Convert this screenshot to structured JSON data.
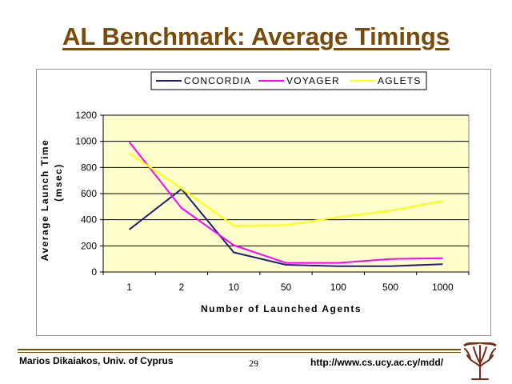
{
  "slide": {
    "title": "AL Benchmark: Average Timings"
  },
  "footer": {
    "author": "Marios Dikaiakos, Univ. of Cyprus",
    "page_number": "29",
    "url": "http://www.cs.ucy.ac.cy/mdd/"
  },
  "logo": {
    "icon": "tree-logo-icon",
    "color": "#7a2a12"
  },
  "colors": {
    "title": "#7a4a08",
    "plot_background": "#ffffcc",
    "footer_rule": "#7a4a08"
  },
  "chart_data": {
    "type": "line",
    "title": "",
    "xlabel": "Number of Launched Agents",
    "ylabel": "Average Launch Time (msec)",
    "ylabel_lines": [
      "Average Launch Time",
      "(msec)"
    ],
    "categories": [
      "1",
      "2",
      "10",
      "50",
      "100",
      "500",
      "1000"
    ],
    "ylim": [
      0,
      1200
    ],
    "yticks": [
      0,
      200,
      400,
      600,
      800,
      1000,
      1200
    ],
    "grid": true,
    "legend_position": "top",
    "series": [
      {
        "name": "CONCORDIA",
        "color": "#1f1f7a",
        "values": [
          325,
          635,
          150,
          55,
          45,
          45,
          60
        ]
      },
      {
        "name": "VOYAGER",
        "color": "#ff00ff",
        "values": [
          995,
          490,
          205,
          70,
          70,
          100,
          105
        ]
      },
      {
        "name": "AGLETS",
        "color": "#ffff00",
        "values": [
          910,
          640,
          355,
          360,
          420,
          470,
          545
        ]
      }
    ]
  }
}
